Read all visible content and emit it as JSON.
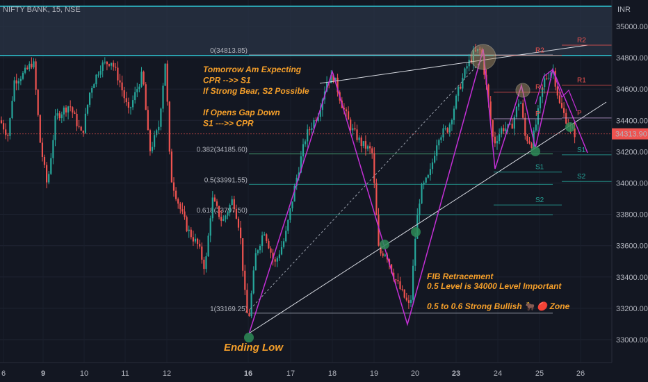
{
  "header": {
    "symbol": "NIFTY BANK, 15, NSE",
    "currency": "INR"
  },
  "colors": {
    "up": "#26a69a",
    "down": "#ef5350",
    "zigzag": "#c42fd6",
    "annotation": "#f59f2a",
    "price_label_bg": "#ef5350",
    "zone": "#2a3445",
    "zone_line": "#2fc9d6",
    "resistance": "#ef5350",
    "support": "#26a69a",
    "background": "#131722"
  },
  "chart_data": {
    "type": "candlestick",
    "title": "NIFTY BANK, 15, NSE",
    "ylim": [
      32950,
      35150
    ],
    "y_ticks": [
      33000,
      33200,
      33400,
      33600,
      33800,
      34000,
      34200,
      34400,
      34600,
      34800,
      35000
    ],
    "y_tick_labels": [
      "33000.00",
      "33200.00",
      "33400.00",
      "33600.00",
      "33800.00",
      "34000.00",
      "34200.00",
      "34400.00",
      "34600.00",
      "34800.00",
      "35000.00"
    ],
    "x_labels": [
      "6",
      "9",
      "10",
      "11",
      "12",
      "16",
      "17",
      "18",
      "19",
      "20",
      "23",
      "24",
      "25",
      "26"
    ],
    "current_price": {
      "value": 34313.9,
      "label": "34313.90"
    },
    "fib_retracement": [
      {
        "level": "0",
        "price": 34813.85,
        "label": "0(34813.85)"
      },
      {
        "level": "0.382",
        "price": 34185.6,
        "label": "0.382(34185.60)"
      },
      {
        "level": "0.5",
        "price": 33991.55,
        "label": "0.5(33991.55)"
      },
      {
        "level": "0.618",
        "price": 33797.5,
        "label": "0.618(33797.50)"
      },
      {
        "level": "1",
        "price": 33169.25,
        "label": "1(33169.25)"
      }
    ],
    "pivots": [
      {
        "name": "R2",
        "price": 34880,
        "session": 2
      },
      {
        "name": "R1",
        "price": 34625,
        "session": 2
      },
      {
        "name": "P",
        "price": 34415,
        "session": 2
      },
      {
        "name": "S1",
        "price": 34180,
        "session": 2
      },
      {
        "name": "S2",
        "price": 34010,
        "session": 2
      },
      {
        "name": "R2",
        "price": 34815,
        "session": 1
      },
      {
        "name": "R1",
        "price": 34580,
        "session": 1
      },
      {
        "name": "P",
        "price": 34410,
        "session": 1
      },
      {
        "name": "S1",
        "price": 34070,
        "session": 1
      },
      {
        "name": "S2",
        "price": 33860,
        "session": 1
      }
    ],
    "zigzag": [
      {
        "date": "16",
        "price": 33150
      },
      {
        "date": "18",
        "price": 34690
      },
      {
        "date": "19-20",
        "price": 33100
      },
      {
        "date": "23",
        "price": 34850
      },
      {
        "date": "24",
        "price": 34100
      },
      {
        "date": "24-25",
        "price": 34610
      },
      {
        "date": "25",
        "price": 34200
      },
      {
        "date": "25-26",
        "price": 34730
      },
      {
        "date": "26",
        "price": 34350
      },
      {
        "date": "26",
        "price": 34180
      }
    ]
  },
  "annotations": {
    "plan_lines": [
      "Tomorrow Am Expecting",
      "CPR -->> S1",
      "If Strong Bear, S2 Possible",
      "",
      "If Opens Gap Down",
      "S1 --->> CPR"
    ],
    "fib_lines": [
      "FIB Retracement",
      "0.5 Level is 34000 Level Important",
      "",
      "0.5 to 0.6 Strong Bullish 🐂 🔴  Zone"
    ],
    "ending_low": "Ending Low"
  }
}
